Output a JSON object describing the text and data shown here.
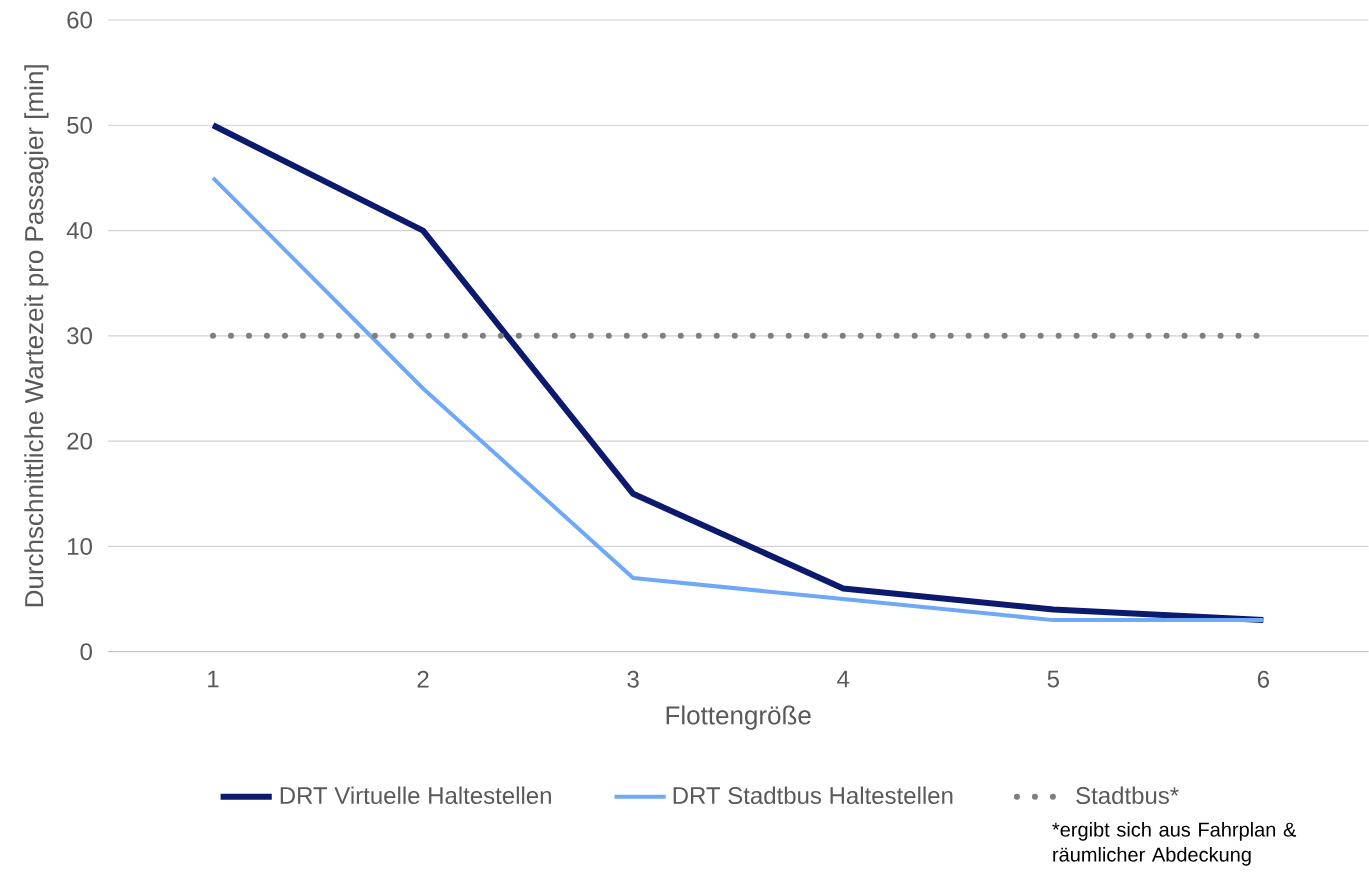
{
  "chart_data": {
    "type": "line",
    "xlabel": "Flottengröße",
    "ylabel": "Durchschnittliche Wartezeit pro Passagier [min]",
    "categories": [
      "1",
      "2",
      "3",
      "4",
      "5",
      "6"
    ],
    "series": [
      {
        "name": "DRT Virtuelle Haltestellen",
        "color": "#0c1a6e",
        "values": [
          50,
          40,
          15,
          6,
          4,
          3
        ],
        "line_style": "solid"
      },
      {
        "name": "DRT Stadtbus Haltestellen",
        "color": "#6ea8f7",
        "values": [
          45,
          25,
          7,
          5,
          3,
          3
        ],
        "line_style": "solid"
      },
      {
        "name": "Stadtbus*",
        "color": "#7f7f7f",
        "values": [
          30,
          30,
          30,
          30,
          30,
          30
        ],
        "line_style": "dotted"
      }
    ],
    "ylim": [
      0,
      60
    ],
    "yticks": [
      0,
      10,
      20,
      30,
      40,
      50,
      60
    ],
    "grid": "y",
    "legend": "bottom",
    "marker": "none",
    "annotations": [
      "*ergibt sich aus Fahrplan & räumlicher Abdeckung"
    ]
  }
}
